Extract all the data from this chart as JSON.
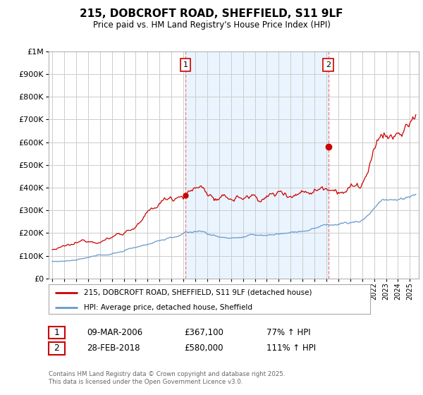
{
  "title": "215, DOBCROFT ROAD, SHEFFIELD, S11 9LF",
  "subtitle": "Price paid vs. HM Land Registry's House Price Index (HPI)",
  "red_label": "215, DOBCROFT ROAD, SHEFFIELD, S11 9LF (detached house)",
  "blue_label": "HPI: Average price, detached house, Sheffield",
  "annotation1_date": "09-MAR-2006",
  "annotation1_price": "£367,100",
  "annotation1_hpi": "77% ↑ HPI",
  "annotation1_year": 2006.18,
  "annotation1_value": 367100,
  "annotation2_date": "28-FEB-2018",
  "annotation2_price": "£580,000",
  "annotation2_hpi": "111% ↑ HPI",
  "annotation2_year": 2018.16,
  "annotation2_value": 580000,
  "footer": "Contains HM Land Registry data © Crown copyright and database right 2025.\nThis data is licensed under the Open Government Licence v3.0.",
  "ylim": [
    0,
    1000000
  ],
  "yticks": [
    0,
    100000,
    200000,
    300000,
    400000,
    500000,
    600000,
    700000,
    800000,
    900000,
    1000000
  ],
  "red_color": "#cc0000",
  "blue_color": "#6699cc",
  "dashed_color": "#e08080",
  "shade_color": "#ddeeff",
  "background_color": "#ffffff",
  "grid_color": "#cccccc"
}
